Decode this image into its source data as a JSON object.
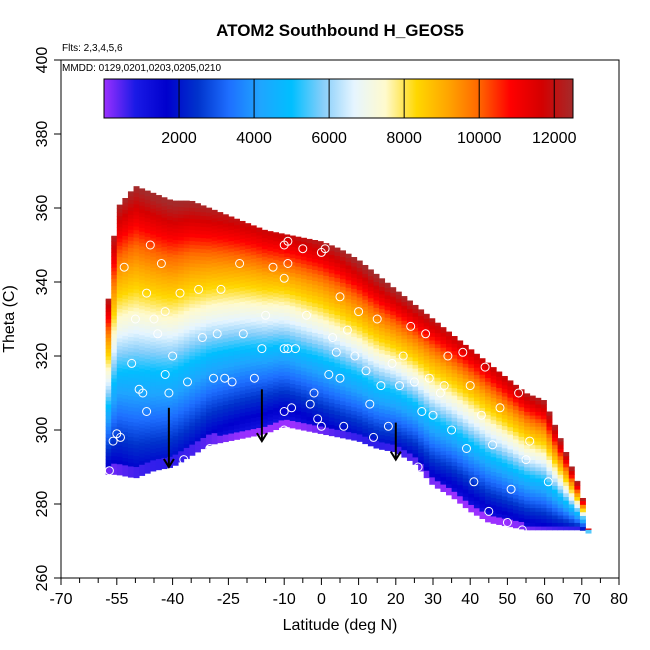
{
  "chart_data": {
    "type": "heatmap",
    "title": "ATOM2 Southbound H_GEOS5",
    "flights_label": "Flts: 2,3,4,5,6",
    "dates_label": "MMDD: 0129,0201,0203,0205,0210",
    "xlabel": "Latitude (deg N)",
    "ylabel": "Theta (C)",
    "xlim": [
      -70,
      80
    ],
    "ylim": [
      260,
      400
    ],
    "x_ticks": [
      -70,
      -55,
      -40,
      -25,
      -10,
      0,
      10,
      20,
      30,
      40,
      50,
      60,
      70,
      80
    ],
    "x_minor_ticks": [
      -65,
      -60,
      -50,
      -45,
      -35,
      -30,
      -20,
      -15,
      -5,
      5,
      15,
      25,
      35,
      45,
      55,
      65,
      75
    ],
    "y_ticks": [
      260,
      280,
      300,
      320,
      340,
      360,
      380,
      400
    ],
    "colorbar": {
      "min": 0,
      "max": 12500,
      "ticks": [
        2000,
        4000,
        6000,
        8000,
        10000,
        12000
      ],
      "colors": [
        "#9b30ff",
        "#1a1ae6",
        "#0000cd",
        "#0033cc",
        "#1e6fff",
        "#1fa5ff",
        "#00bfff",
        "#87cefa",
        "#e6f5ff",
        "#fffacd",
        "#ffd700",
        "#ffa500",
        "#ff6600",
        "#ff0000",
        "#d40000",
        "#a52a2a"
      ]
    },
    "grid_lat": [
      -72,
      -60,
      -55,
      -50,
      -45,
      -40,
      -35,
      -30,
      -25,
      -20,
      -15,
      -10,
      -5,
      0,
      5,
      10,
      15,
      20,
      25,
      30,
      35,
      40,
      45,
      50,
      55,
      60,
      65,
      72
    ],
    "grid_theta": [
      270,
      275,
      280,
      285,
      290,
      295,
      300,
      305,
      310,
      315,
      320,
      325,
      330,
      335,
      340,
      345,
      350,
      355,
      360,
      365
    ],
    "domain": {
      "lat": [
        -58,
        -57,
        -55,
        -50,
        -45,
        -40,
        -35,
        -30,
        -25,
        -20,
        -15,
        -10,
        -5,
        0,
        5,
        10,
        15,
        20,
        25,
        30,
        35,
        40,
        45,
        50,
        55,
        60,
        65,
        70,
        72
      ],
      "theta_bottom": [
        288,
        288,
        288,
        287,
        289,
        290,
        293,
        296,
        297,
        298,
        299,
        301,
        300,
        299,
        298,
        297,
        295,
        294,
        291,
        285,
        282,
        278,
        275,
        274,
        273,
        273,
        273,
        273,
        272
      ],
      "theta_top": [
        322,
        340,
        360,
        366,
        364,
        362,
        362,
        360,
        358,
        356,
        354,
        353,
        352,
        351,
        349,
        346,
        342,
        338,
        334,
        330,
        326,
        322,
        318,
        314,
        310,
        308,
        296,
        283,
        272
      ]
    },
    "altitude_field": {
      "top_value": 12300,
      "high_plateau": 9500,
      "mid_band": 6200,
      "low_value": 1500,
      "floor_value": 300
    },
    "observations": {
      "points": [
        [
          -57,
          289
        ],
        [
          -56,
          297
        ],
        [
          -55,
          299
        ],
        [
          -54,
          298
        ],
        [
          -53,
          344
        ],
        [
          -51,
          318
        ],
        [
          -50,
          330
        ],
        [
          -49,
          311
        ],
        [
          -48,
          310
        ],
        [
          -47,
          305
        ],
        [
          -47,
          337
        ],
        [
          -46,
          350
        ],
        [
          -45,
          330
        ],
        [
          -44,
          326
        ],
        [
          -43,
          345
        ],
        [
          -42,
          332
        ],
        [
          -42,
          315
        ],
        [
          -41,
          310
        ],
        [
          -40,
          320
        ],
        [
          -38,
          337
        ],
        [
          -37,
          292
        ],
        [
          -36,
          313
        ],
        [
          -33,
          338
        ],
        [
          -32,
          325
        ],
        [
          -30,
          295
        ],
        [
          -29,
          314
        ],
        [
          -28,
          326
        ],
        [
          -27,
          338
        ],
        [
          -26,
          314
        ],
        [
          -24,
          313
        ],
        [
          -22,
          345
        ],
        [
          -21,
          326
        ],
        [
          -18,
          314
        ],
        [
          -16,
          322
        ],
        [
          -15,
          331
        ],
        [
          -13,
          344
        ],
        [
          -10,
          350
        ],
        [
          -10,
          341
        ],
        [
          -10,
          322
        ],
        [
          -10,
          305
        ],
        [
          -10,
          300
        ],
        [
          -9,
          351
        ],
        [
          -9,
          345
        ],
        [
          -9,
          322
        ],
        [
          -8,
          306
        ],
        [
          -8,
          297
        ],
        [
          -7,
          322
        ],
        [
          -5,
          349
        ],
        [
          -4,
          331
        ],
        [
          -3,
          307
        ],
        [
          -2,
          310
        ],
        [
          -1,
          303
        ],
        [
          0,
          348
        ],
        [
          0,
          301
        ],
        [
          1,
          349
        ],
        [
          2,
          315
        ],
        [
          3,
          325
        ],
        [
          4,
          321
        ],
        [
          5,
          336
        ],
        [
          5,
          314
        ],
        [
          6,
          301
        ],
        [
          7,
          327
        ],
        [
          9,
          320
        ],
        [
          10,
          332
        ],
        [
          10,
          349
        ],
        [
          11,
          349
        ],
        [
          12,
          316
        ],
        [
          13,
          307
        ],
        [
          14,
          298
        ],
        [
          15,
          330
        ],
        [
          16,
          312
        ],
        [
          18,
          301
        ],
        [
          19,
          318
        ],
        [
          20,
          292
        ],
        [
          21,
          312
        ],
        [
          22,
          320
        ],
        [
          24,
          328
        ],
        [
          25,
          313
        ],
        [
          26,
          290
        ],
        [
          27,
          305
        ],
        [
          28,
          326
        ],
        [
          29,
          314
        ],
        [
          30,
          304
        ],
        [
          32,
          310
        ],
        [
          33,
          312
        ],
        [
          34,
          320
        ],
        [
          35,
          300
        ],
        [
          38,
          321
        ],
        [
          39,
          295
        ],
        [
          40,
          312
        ],
        [
          41,
          286
        ],
        [
          43,
          304
        ],
        [
          44,
          317
        ],
        [
          45,
          278
        ],
        [
          46,
          296
        ],
        [
          47,
          322
        ],
        [
          48,
          306
        ],
        [
          50,
          275
        ],
        [
          51,
          284
        ],
        [
          52,
          315
        ],
        [
          53,
          310
        ],
        [
          54,
          273
        ],
        [
          55,
          292
        ],
        [
          56,
          297
        ],
        [
          58,
          316
        ],
        [
          61,
          286
        ]
      ]
    },
    "arrows": [
      {
        "lat": -41,
        "theta_from": 306,
        "theta_to": 290
      },
      {
        "lat": -16,
        "theta_from": 311,
        "theta_to": 297
      },
      {
        "lat": 20,
        "theta_from": 302,
        "theta_to": 292
      }
    ]
  }
}
